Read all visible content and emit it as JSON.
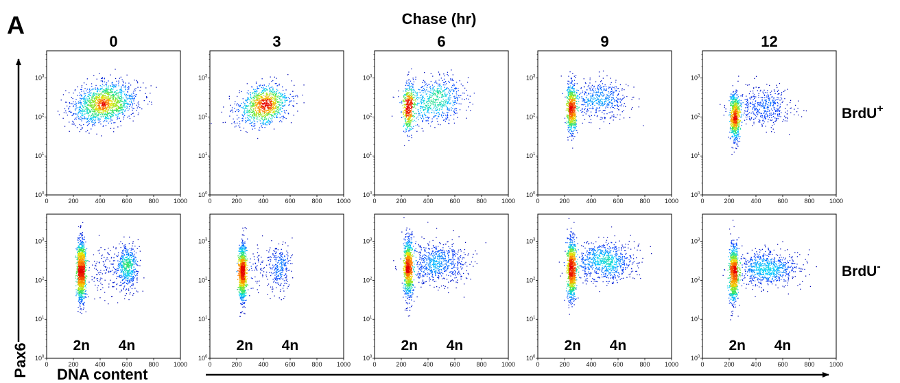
{
  "figure": {
    "panel_letter": "A",
    "chase_title": "Chase (hr)",
    "y_axis_label": "Pax6",
    "x_axis_label": "DNA content",
    "row_labels": [
      {
        "base": "BrdU",
        "sup": "+"
      },
      {
        "base": "BrdU",
        "sup": "-"
      }
    ]
  },
  "chart_data": {
    "type": "scatter",
    "description_free": true,
    "columns": [
      "0",
      "3",
      "6",
      "9",
      "12"
    ],
    "x_axis": {
      "range": [
        0,
        1000
      ],
      "ticks": [
        0,
        200,
        400,
        600,
        800,
        1000
      ]
    },
    "y_axis": {
      "scale": "log",
      "range": [
        1,
        5000
      ],
      "ticks": [
        {
          "base": "10",
          "exp": "0"
        },
        {
          "base": "10",
          "exp": "1"
        },
        {
          "base": "10",
          "exp": "2"
        },
        {
          "base": "10",
          "exp": "3"
        }
      ]
    },
    "ploidy_labels": {
      "g1": "2n",
      "g2": "4n",
      "g1_x": 260,
      "g2_x": 600
    },
    "panels": [
      {
        "row": 0,
        "col": 0,
        "clusters": [
          {
            "x": 430,
            "y": 230,
            "sx": 120,
            "sy": 0.25,
            "n": 1500,
            "tilt": 0.28
          }
        ]
      },
      {
        "row": 0,
        "col": 1,
        "clusters": [
          {
            "x": 400,
            "y": 200,
            "sx": 95,
            "sy": 0.25,
            "n": 1100,
            "tilt": 0.3
          }
        ]
      },
      {
        "row": 0,
        "col": 2,
        "clusters": [
          {
            "x": 250,
            "y": 180,
            "sx": 18,
            "sy": 0.33,
            "n": 450
          },
          {
            "x": 450,
            "y": 280,
            "sx": 110,
            "sy": 0.27,
            "n": 700,
            "tilt": 0.25
          }
        ]
      },
      {
        "row": 0,
        "col": 3,
        "clusters": [
          {
            "x": 250,
            "y": 170,
            "sx": 18,
            "sy": 0.3,
            "n": 700
          },
          {
            "x": 470,
            "y": 280,
            "sx": 100,
            "sy": 0.25,
            "n": 500
          }
        ]
      },
      {
        "row": 0,
        "col": 4,
        "clusters": [
          {
            "x": 240,
            "y": 100,
            "sx": 18,
            "sy": 0.3,
            "n": 800
          },
          {
            "x": 450,
            "y": 180,
            "sx": 110,
            "sy": 0.25,
            "n": 450
          }
        ]
      },
      {
        "row": 1,
        "col": 0,
        "clusters": [
          {
            "x": 255,
            "y": 180,
            "sx": 16,
            "sy": 0.38,
            "n": 1300
          },
          {
            "x": 600,
            "y": 220,
            "sx": 40,
            "sy": 0.28,
            "n": 550
          },
          {
            "x": 420,
            "y": 200,
            "sx": 80,
            "sy": 0.32,
            "n": 150
          }
        ]
      },
      {
        "row": 1,
        "col": 1,
        "clusters": [
          {
            "x": 240,
            "y": 160,
            "sx": 14,
            "sy": 0.38,
            "n": 1100
          },
          {
            "x": 520,
            "y": 230,
            "sx": 40,
            "sy": 0.3,
            "n": 250
          },
          {
            "x": 380,
            "y": 200,
            "sx": 70,
            "sy": 0.3,
            "n": 100
          }
        ]
      },
      {
        "row": 1,
        "col": 2,
        "clusters": [
          {
            "x": 250,
            "y": 200,
            "sx": 16,
            "sy": 0.38,
            "n": 1000
          },
          {
            "x": 470,
            "y": 280,
            "sx": 110,
            "sy": 0.27,
            "n": 700
          }
        ]
      },
      {
        "row": 1,
        "col": 3,
        "clusters": [
          {
            "x": 250,
            "y": 200,
            "sx": 16,
            "sy": 0.38,
            "n": 1000
          },
          {
            "x": 490,
            "y": 300,
            "sx": 110,
            "sy": 0.24,
            "n": 850
          }
        ]
      },
      {
        "row": 1,
        "col": 4,
        "clusters": [
          {
            "x": 230,
            "y": 150,
            "sx": 16,
            "sy": 0.38,
            "n": 1000
          },
          {
            "x": 480,
            "y": 200,
            "sx": 110,
            "sy": 0.22,
            "n": 800
          }
        ]
      }
    ]
  }
}
